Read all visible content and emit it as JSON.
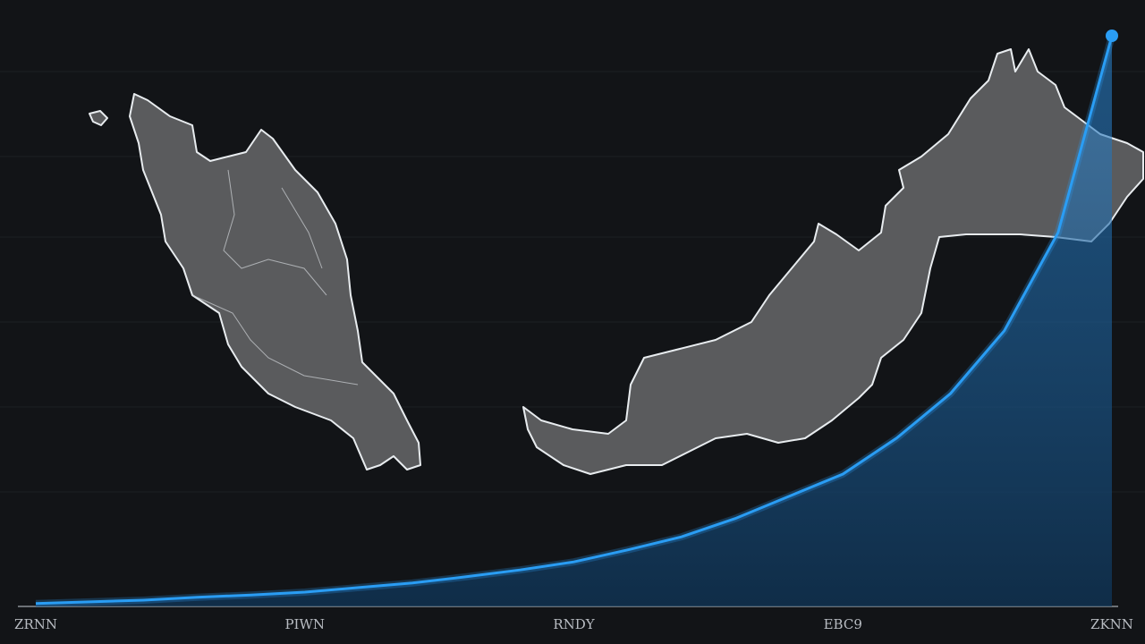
{
  "chart_data": {
    "type": "area",
    "categories": [
      "ZRNN",
      null,
      null,
      null,
      null,
      "PIWN",
      null,
      null,
      null,
      null,
      "RNDY",
      null,
      null,
      null,
      null,
      "EBC9",
      null,
      null,
      null,
      null,
      "ZKNN"
    ],
    "series": [
      {
        "color": "#2a9df4",
        "values": [
          0.5,
          0.8,
          1.1,
          1.6,
          2.0,
          2.5,
          3.3,
          4.1,
          5.2,
          6.4,
          7.8,
          9.9,
          12.2,
          15.4,
          19.3,
          23.2,
          29.5,
          37.3,
          48.3,
          65.5,
          100
        ]
      }
    ],
    "ylim": [
      0,
      100
    ]
  }
}
